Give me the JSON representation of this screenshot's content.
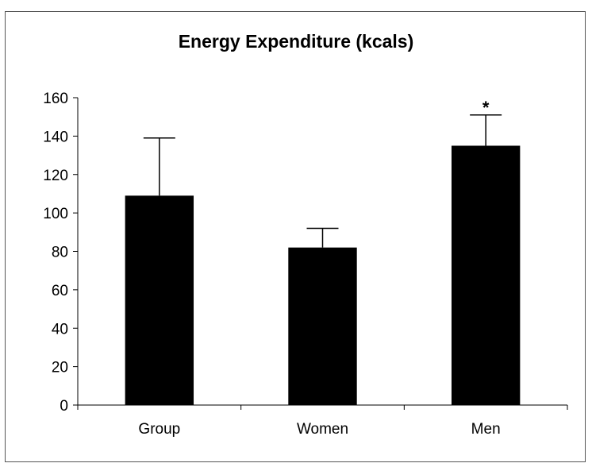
{
  "chart_data": {
    "type": "bar",
    "title": "Energy Expenditure (kcals)",
    "xlabel": "",
    "ylabel": "",
    "categories": [
      "Group",
      "Women",
      "Men"
    ],
    "values": [
      109,
      82,
      135
    ],
    "error_upper": [
      139,
      92,
      151
    ],
    "annotations": [
      {
        "category": "Men",
        "text": "*"
      }
    ],
    "ylim": [
      0,
      160
    ],
    "yticks": [
      0,
      20,
      40,
      60,
      80,
      100,
      120,
      140,
      160
    ],
    "grid": false,
    "legend": "none",
    "bar_color": "#000000"
  }
}
